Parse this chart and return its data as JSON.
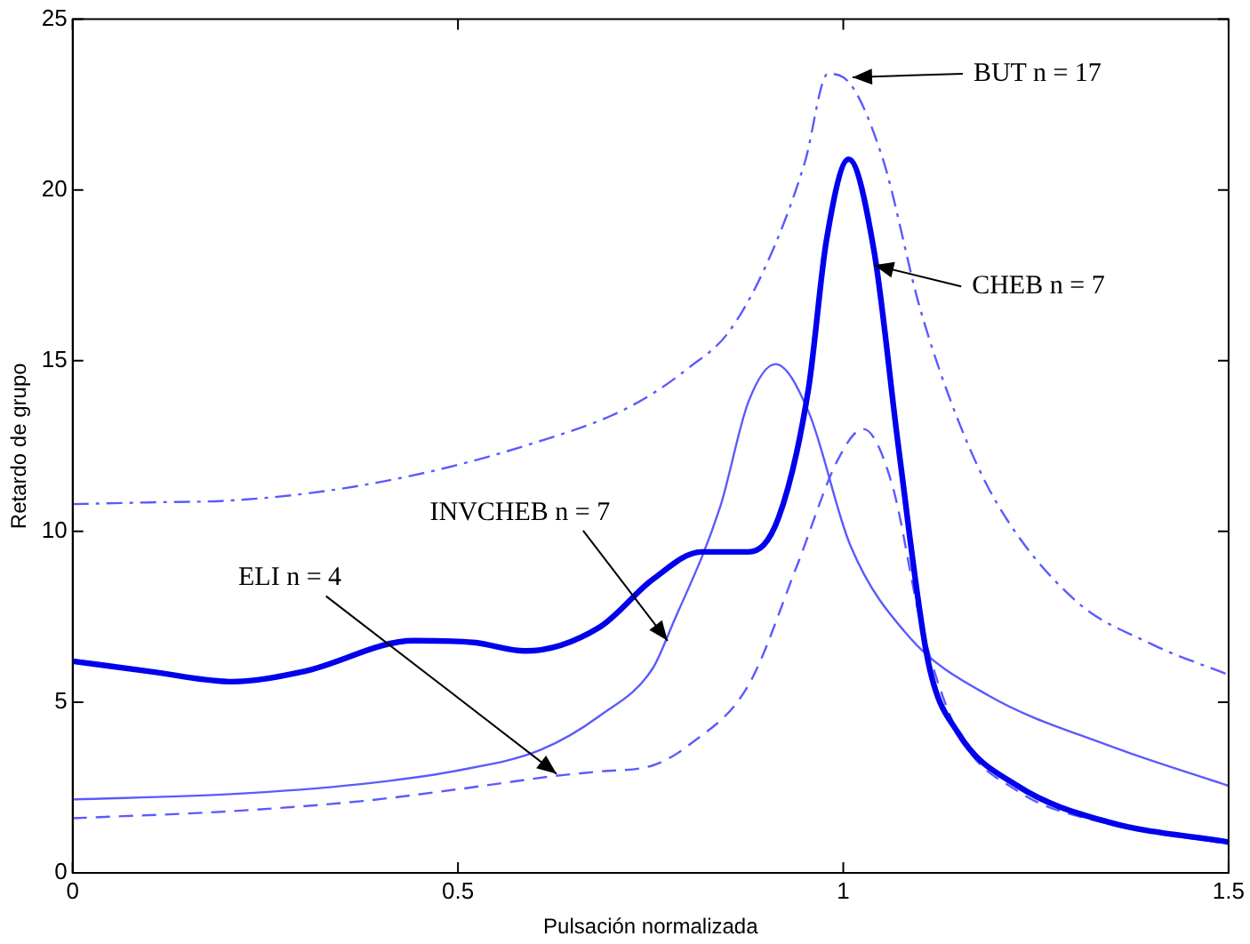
{
  "chart_data": {
    "type": "line",
    "xlabel": "Pulsación normalizada",
    "ylabel": "Retardo de grupo",
    "xlim": [
      0,
      1.5
    ],
    "xticks": [
      0,
      {
        "value": 0.5,
        "label": "0.5"
      },
      1,
      {
        "value": 1.5,
        "label": "1.5"
      }
    ],
    "ylim": [
      0,
      25
    ],
    "yticks": [
      0,
      5,
      10,
      15,
      20,
      25
    ],
    "grid": false,
    "legend": false,
    "marker": "none",
    "series": [
      {
        "color": "#5a5aff",
        "line_style": "dashdot",
        "x": [
          0,
          0.1,
          0.2,
          0.3,
          0.4,
          0.5,
          0.6,
          0.7,
          0.75,
          0.8,
          0.85,
          0.9,
          0.95,
          0.98,
          1.0,
          1.05,
          1.1,
          1.15,
          1.2,
          1.3,
          1.4,
          1.5
        ],
        "values": [
          10.8,
          10.85,
          10.9,
          11.1,
          11.45,
          11.95,
          12.6,
          13.4,
          14.0,
          14.8,
          15.8,
          17.8,
          20.8,
          23.4,
          23.3,
          21.0,
          16.5,
          13.2,
          10.8,
          8.0,
          6.7,
          5.8
        ]
      },
      {
        "color": "#0000ee",
        "line_style": "solid",
        "x": [
          0,
          0.1,
          0.207,
          0.3,
          0.443,
          0.52,
          0.587,
          0.684,
          0.753,
          0.816,
          0.877,
          0.916,
          0.955,
          0.978,
          1.007,
          1.04,
          1.072,
          1.11,
          1.149,
          1.226,
          1.342,
          1.5
        ],
        "values": [
          6.2,
          5.9,
          5.6,
          5.9,
          6.8,
          6.75,
          6.5,
          7.2,
          8.6,
          9.4,
          9.4,
          10.4,
          14.2,
          18.5,
          20.9,
          18.2,
          12.4,
          6.2,
          4.1,
          2.55,
          1.5,
          0.9
        ]
      },
      {
        "color": "#5a5aff",
        "line_style": "solid",
        "x": [
          0,
          0.2,
          0.374,
          0.5,
          0.607,
          0.684,
          0.753,
          0.777,
          0.84,
          0.877,
          0.912,
          0.955,
          1.009,
          1.086,
          1.188,
          1.342,
          1.5
        ],
        "values": [
          2.15,
          2.3,
          2.6,
          3.0,
          3.6,
          4.6,
          6.0,
          7.2,
          10.7,
          13.8,
          14.9,
          13.5,
          9.6,
          6.9,
          5.2,
          3.75,
          2.55
        ]
      },
      {
        "color": "#5a5aff",
        "line_style": "dashed",
        "x": [
          0,
          0.2,
          0.374,
          0.5,
          0.63,
          0.684,
          0.753,
          0.8,
          0.877,
          0.94,
          0.993,
          1.026,
          1.063,
          1.102,
          1.149,
          1.226,
          1.342,
          1.5
        ],
        "values": [
          1.6,
          1.8,
          2.1,
          2.45,
          2.85,
          2.97,
          3.15,
          3.75,
          5.5,
          9.0,
          12.1,
          13.0,
          11.4,
          7.2,
          4.1,
          2.4,
          1.45,
          0.85
        ]
      }
    ],
    "annotations": [
      {
        "text": "BUT n = 17",
        "x": 1.012,
        "y": 23.3
      },
      {
        "text": "CHEB n = 7",
        "x": 1.04,
        "y": 17.8
      },
      {
        "text": "INVCHEB n = 7",
        "x": 0.772,
        "y": 6.8
      },
      {
        "text": "ELI n = 4",
        "x": 0.628,
        "y": 2.9
      }
    ]
  }
}
